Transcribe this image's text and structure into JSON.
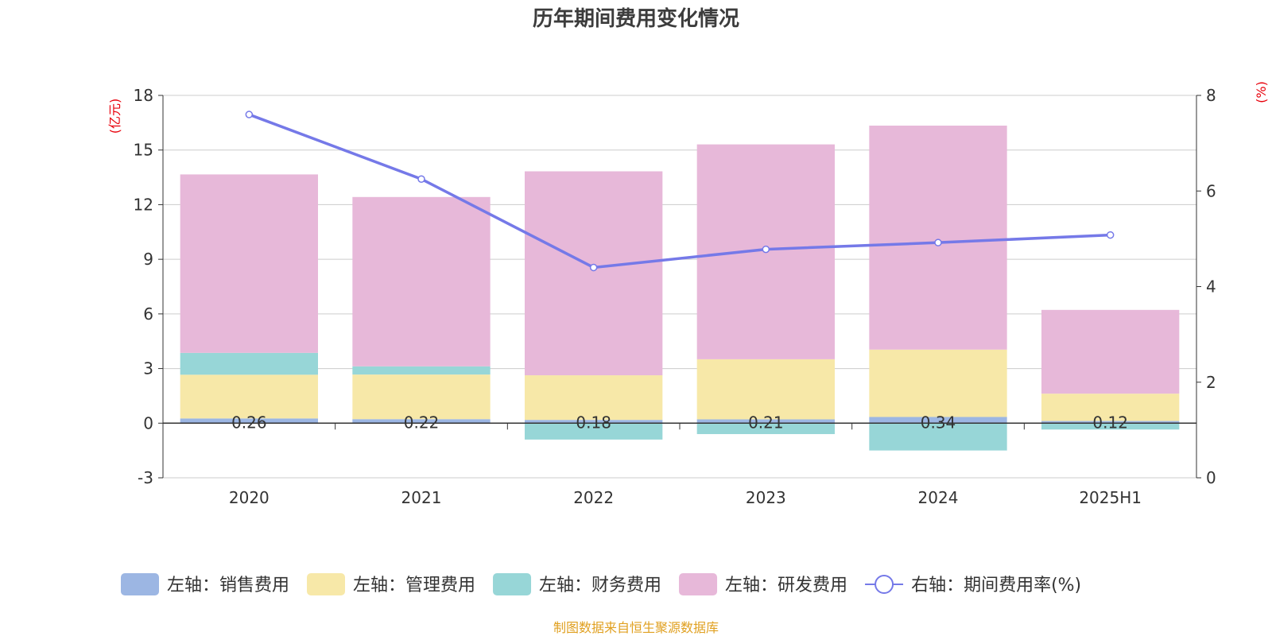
{
  "chart_data": {
    "title": "历年期间费用变化情况",
    "type": "bar",
    "stacked": true,
    "categories": [
      "2020",
      "2021",
      "2022",
      "2023",
      "2024",
      "2025H1"
    ],
    "left_axis": {
      "unit": "(亿元)",
      "ylim": [
        -3,
        18
      ],
      "ticks": [
        "-3",
        "0",
        "3",
        "6",
        "9",
        "12",
        "15",
        "18"
      ]
    },
    "right_axis": {
      "unit": "(%)",
      "ylim": [
        0,
        8
      ],
      "ticks": [
        "0",
        "2",
        "4",
        "6",
        "8"
      ]
    },
    "series": [
      {
        "name": "左轴：销售费用",
        "kind": "bar",
        "color": "#9cb6e3",
        "values": [
          0.26,
          0.22,
          0.18,
          0.21,
          0.34,
          0.12
        ]
      },
      {
        "name": "左轴：管理费用",
        "kind": "bar",
        "color": "#f7e8a8",
        "values": [
          2.4,
          2.45,
          2.45,
          3.3,
          3.7,
          1.5
        ]
      },
      {
        "name": "左轴：财务费用",
        "kind": "bar",
        "color": "#97d6d7",
        "values": [
          1.2,
          0.45,
          -0.9,
          -0.6,
          -1.5,
          -0.35
        ]
      },
      {
        "name": "左轴：研发费用",
        "kind": "bar",
        "color": "#e7b8d9",
        "values": [
          9.8,
          9.3,
          11.2,
          11.8,
          12.3,
          4.6
        ]
      },
      {
        "name": "右轴：期间费用率(%)",
        "kind": "line",
        "axis": "right",
        "color": "#7579e8",
        "values": [
          7.6,
          6.25,
          4.4,
          4.78,
          4.92,
          5.08
        ]
      }
    ],
    "data_labels": [
      "0.26",
      "0.22",
      "0.18",
      "0.21",
      "0.34",
      "0.12"
    ],
    "grid": true,
    "legend_position": "bottom"
  },
  "footer": {
    "source": "制图数据来自恒生聚源数据库"
  }
}
